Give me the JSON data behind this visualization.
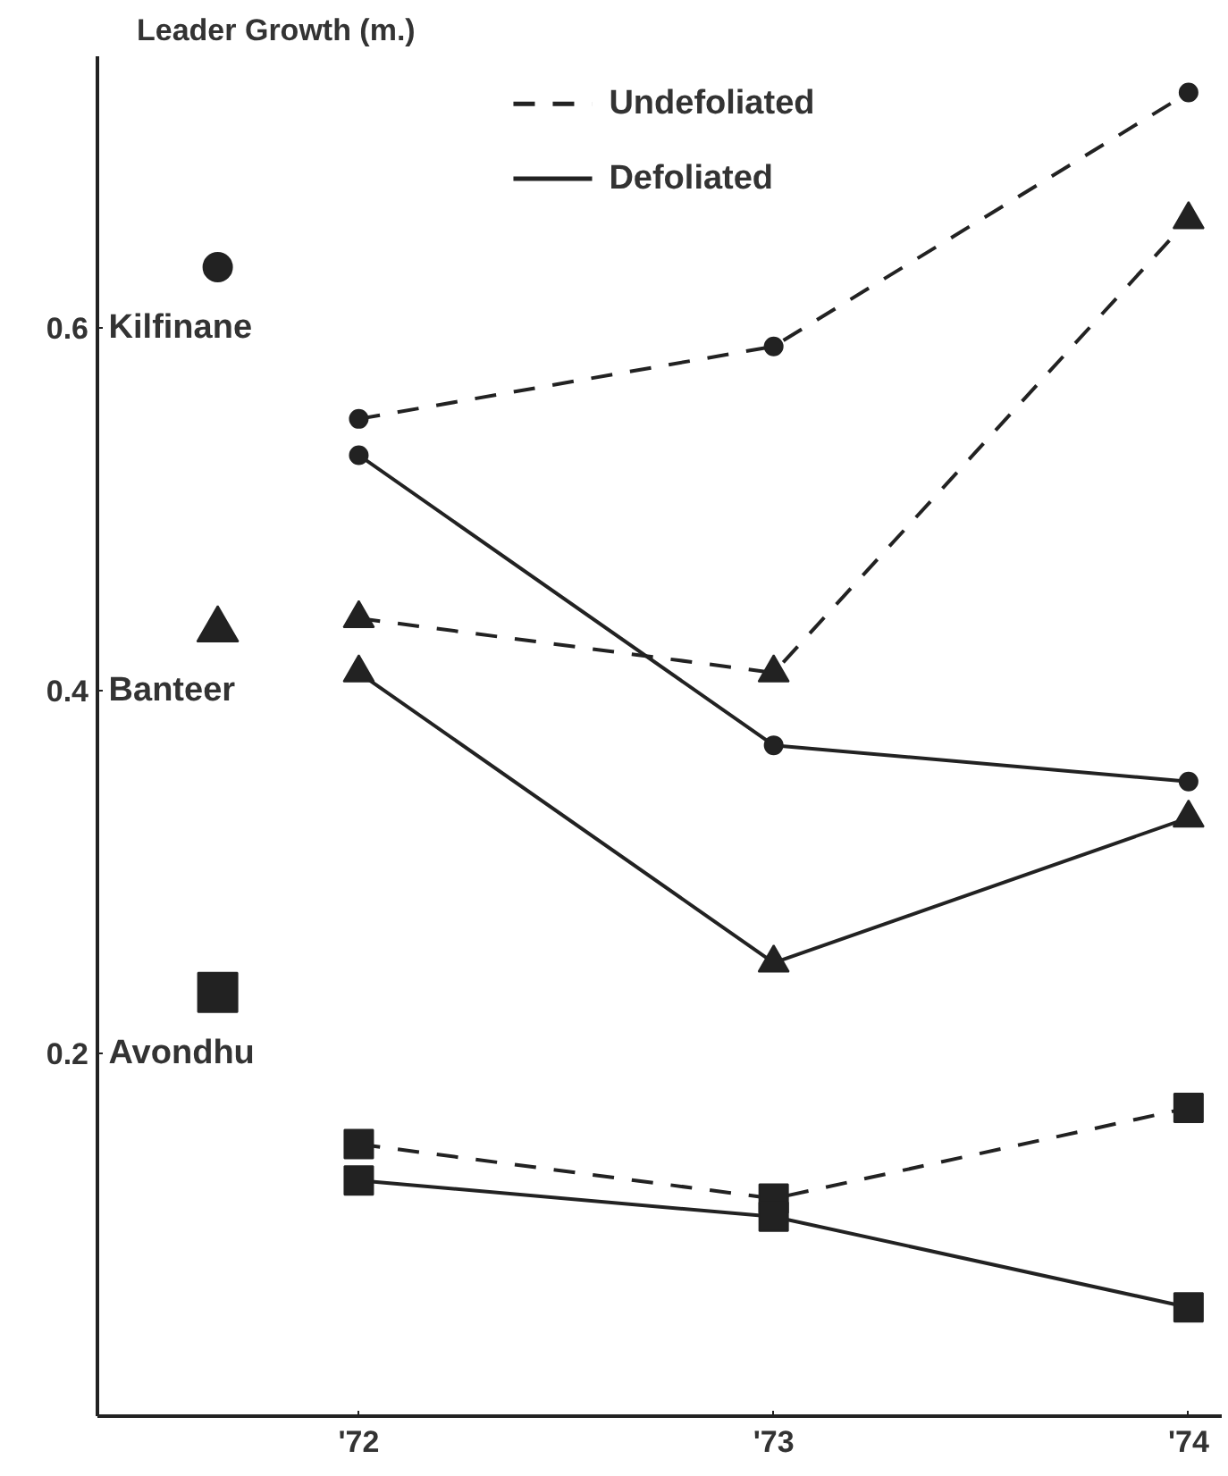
{
  "chart_data": {
    "type": "line",
    "ylabel": "Leader Growth (m.)",
    "x": [
      1972,
      1973,
      1974
    ],
    "xlim": [
      1971.37,
      1974.08
    ],
    "xticks": [
      {
        "value": 1972,
        "label": "'72"
      },
      {
        "value": 1973,
        "label": "'73"
      },
      {
        "value": 1974,
        "label": "'74"
      }
    ],
    "ylim": [
      0,
      0.75
    ],
    "yticks": [
      0.2,
      0.4,
      0.6
    ],
    "grid": false,
    "legend": "left",
    "series": [
      {
        "name": "Kilfinane",
        "color": "#222222",
        "marker": "circle",
        "line_style": "dashed",
        "values": [
          0.55,
          0.59,
          0.73
        ]
      },
      {
        "color": "#222222",
        "marker": "circle",
        "line_style": "solid",
        "values": [
          0.53,
          0.37,
          0.35
        ]
      },
      {
        "name": "Banteer",
        "color": "#222222",
        "marker": "triangle",
        "line_style": "dashed",
        "values": [
          0.44,
          0.41,
          0.66
        ]
      },
      {
        "color": "#222222",
        "marker": "triangle",
        "line_style": "solid",
        "values": [
          0.41,
          0.25,
          0.33
        ]
      },
      {
        "name": "Avondhu",
        "color": "#222222",
        "marker": "square",
        "line_style": "dashed",
        "values": [
          0.15,
          0.12,
          0.17
        ]
      },
      {
        "color": "#222222",
        "marker": "square",
        "line_style": "solid",
        "values": [
          0.13,
          0.11,
          0.06
        ]
      }
    ],
    "annotations": [
      "Undefoliated",
      "Defoliated"
    ]
  }
}
